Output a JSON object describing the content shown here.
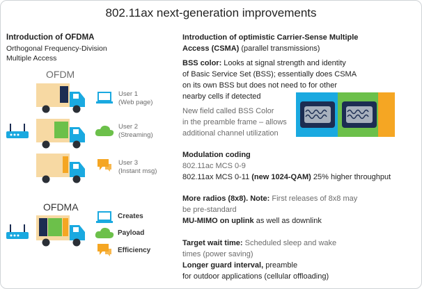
{
  "title": "802.11ax next-generation improvements",
  "left": {
    "heading": "Introduction of OFDMA",
    "subtitle_line1": "Orthogonal Frequency-Division",
    "subtitle_line2": "Multiple Access",
    "ofdm_label": "OFDM",
    "ofdma_label": "OFDMA",
    "users": [
      {
        "name": "User 1",
        "detail": "(Web page)"
      },
      {
        "name": "User 2",
        "detail": "(Streaming)"
      },
      {
        "name": "User 3",
        "detail": "(Instant msg)"
      }
    ],
    "ofdma_items": [
      "Creates",
      "Payload",
      "Efficiency"
    ]
  },
  "right": {
    "csma_heading1": "Introduction of optimistic Carrier-Sense Multiple",
    "csma_heading2": "Access (CSMA)",
    "csma_heading_suffix": " (parallel transmissions)",
    "bss_label": "BSS color:",
    "bss_text1": " Looks at signal strength and identity",
    "bss_text2": "of Basic Service Set (BSS); essentially does CSMA",
    "bss_text3": "on its own BSS but does not need to for other",
    "bss_text4": "nearby cells if detected",
    "field_text1": "New field called BSS Color",
    "field_text2": "in the preamble frame – allows",
    "field_text3": "additional channel utilization",
    "mod_heading": "Modulation coding",
    "mod_line1": "802.11ac MCS 0-9",
    "mod_line2_prefix": "802.11ax MCS 0-11 ",
    "mod_line2_bold": "(new 1024-QAM)",
    "mod_line2_suffix": " 25% higher throughput",
    "radios_bold": "More radios (8x8). Note:",
    "radios_text": " First releases of 8x8 may",
    "radios_text2": "be pre-standard",
    "mumimo_bold": "MU-MIMO on uplink",
    "mumimo_text": " as well as downlink",
    "twt_bold": "Target wait time:",
    "twt_text": " Scheduled sleep and wake",
    "twt_text2": "times (power saving)",
    "guard_bold": "Longer guard interval,",
    "guard_text": " preamble",
    "guard_text2": "for outdoor applications (cellular offloading)"
  },
  "colors": {
    "truck_body": "#f7d9a3",
    "truck_cab": "#1aa9e0",
    "navy": "#1c2d52",
    "green": "#6cc04a",
    "orange": "#f5a623",
    "wheel": "#2a2f36"
  }
}
